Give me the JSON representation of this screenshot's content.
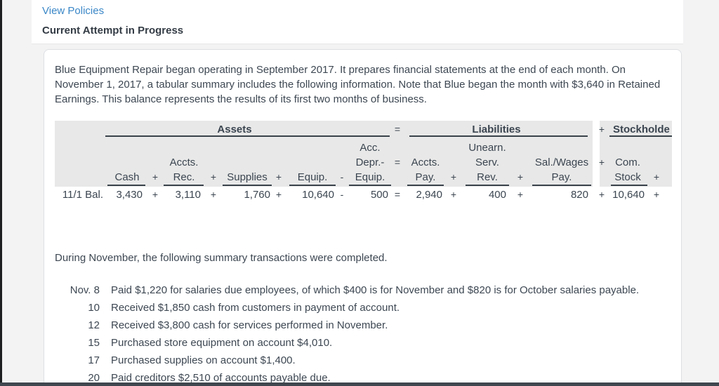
{
  "colors": {
    "link_blue": "#3a87c7",
    "text": "#3d4752",
    "table_header_bg": "#e8e8e8",
    "rule_line": "#39424a"
  },
  "header": {
    "view_policies": "View Policies",
    "attempt_status": "Current Attempt in Progress"
  },
  "problem": {
    "lines": [
      "Blue Equipment Repair began operating in September 2017. It prepares financial statements at the end of each month. On",
      "November 1, 2017, a tabular summary includes the following information. Note that Blue began the month with $3,640 in Retained",
      "Earnings. This balance represents the results of its first two months of business."
    ]
  },
  "table": {
    "row_label": "11/1 Bal.",
    "sections": [
      {
        "label": "Assets",
        "op_after": "="
      },
      {
        "label": "Liabilities",
        "op_after": "+"
      },
      {
        "label": "Stockholde",
        "op_after": ""
      }
    ],
    "columns": [
      {
        "header_lines": [
          "Cash"
        ],
        "value": "3,430",
        "op_after": "+"
      },
      {
        "header_lines": [
          "Accts.",
          "Rec."
        ],
        "value": "3,110",
        "op_after": "+"
      },
      {
        "header_lines": [
          "Supplies"
        ],
        "value": "1,760",
        "op_after": "+"
      },
      {
        "header_lines": [
          "Equip."
        ],
        "value": "10,640",
        "op_after": "-"
      },
      {
        "header_lines": [
          "Acc.",
          "Depr.-",
          "Equip."
        ],
        "value": "500",
        "op_after": "="
      },
      {
        "header_lines": [
          "Accts.",
          "Pay."
        ],
        "value": "2,940",
        "op_after": "+"
      },
      {
        "header_lines": [
          "Unearn.",
          "Serv.",
          "Rev."
        ],
        "value": "400",
        "op_after": "+"
      },
      {
        "header_lines": [
          "Sal./Wages",
          "Pay."
        ],
        "value": "820",
        "op_after": "+"
      },
      {
        "header_lines": [
          "Com.",
          "Stock"
        ],
        "value": "10,640",
        "op_after": "+"
      }
    ]
  },
  "during_text": "During November, the following summary transactions were completed.",
  "transactions": [
    {
      "date": "Nov. 8",
      "description": "Paid $1,220 for salaries due employees, of which $400 is for November and $820 is for October salaries payable."
    },
    {
      "date": "10",
      "description": "Received $1,850 cash from customers in payment of account."
    },
    {
      "date": "12",
      "description": "Received $3,800 cash for services performed in November."
    },
    {
      "date": "15",
      "description": "Purchased store equipment on account $4,010."
    },
    {
      "date": "17",
      "description": "Purchased supplies on account $1,400."
    },
    {
      "date": "20",
      "description": "Paid creditors $2,510 of accounts payable due."
    }
  ]
}
